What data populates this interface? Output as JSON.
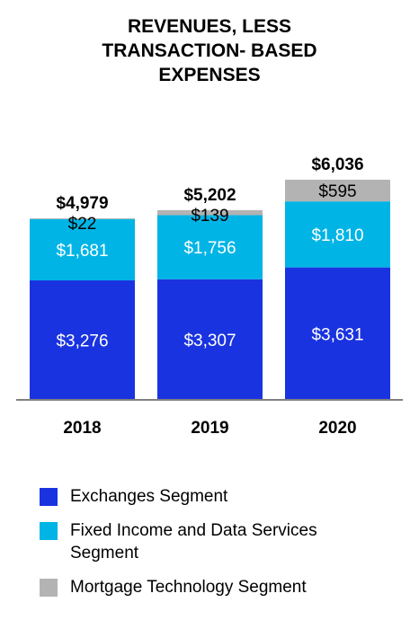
{
  "chart_data": {
    "type": "bar",
    "stacked": true,
    "title_lines": [
      "REVENUES, LESS",
      "TRANSACTION- BASED",
      "EXPENSES"
    ],
    "categories": [
      "2018",
      "2019",
      "2020"
    ],
    "totals": [
      4979,
      5202,
      6036
    ],
    "total_labels": [
      "$4,979",
      "$5,202",
      "$6,036"
    ],
    "series": [
      {
        "name": "Exchanges Segment",
        "color": "#1a33e0",
        "values": [
          3276,
          3307,
          3631
        ],
        "labels": [
          "$3,276",
          "$3,307",
          "$3,631"
        ]
      },
      {
        "name": "Fixed Income and Data Services Segment",
        "color": "#00b4e6",
        "values": [
          1681,
          1756,
          1810
        ],
        "labels": [
          "$1,681",
          "$1,756",
          "$1,810"
        ]
      },
      {
        "name": "Mortgage Technology Segment",
        "color": "#b3b3b3",
        "values": [
          22,
          139,
          595
        ],
        "labels": [
          "$22",
          "$139",
          "$595"
        ]
      }
    ],
    "legend_position": "bottom",
    "grid": false,
    "ylim": [
      0,
      6036
    ]
  },
  "legend": {
    "items": [
      {
        "label_lines": [
          "Exchanges Segment"
        ],
        "color": "#1a33e0"
      },
      {
        "label_lines": [
          "Fixed Income and Data Services",
          "Segment"
        ],
        "color": "#00b4e6"
      },
      {
        "label_lines": [
          "Mortgage Technology Segment"
        ],
        "color": "#b3b3b3"
      }
    ]
  }
}
